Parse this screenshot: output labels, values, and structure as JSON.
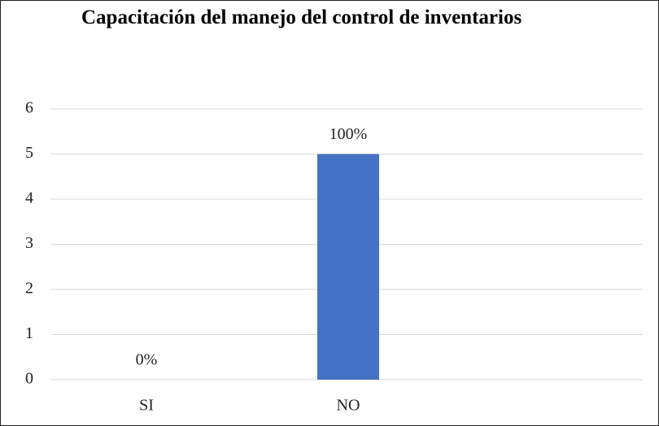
{
  "chart_data": {
    "type": "bar",
    "title": "Capacitación del manejo del control de inventarios",
    "categories": [
      "SI",
      "NO"
    ],
    "values": [
      0,
      5
    ],
    "value_labels": [
      "0%",
      "100%"
    ],
    "color": "#4472c4",
    "ylim": [
      0,
      6
    ],
    "yticks": [
      0,
      1,
      2,
      3,
      4,
      5,
      6
    ],
    "grid": true
  }
}
